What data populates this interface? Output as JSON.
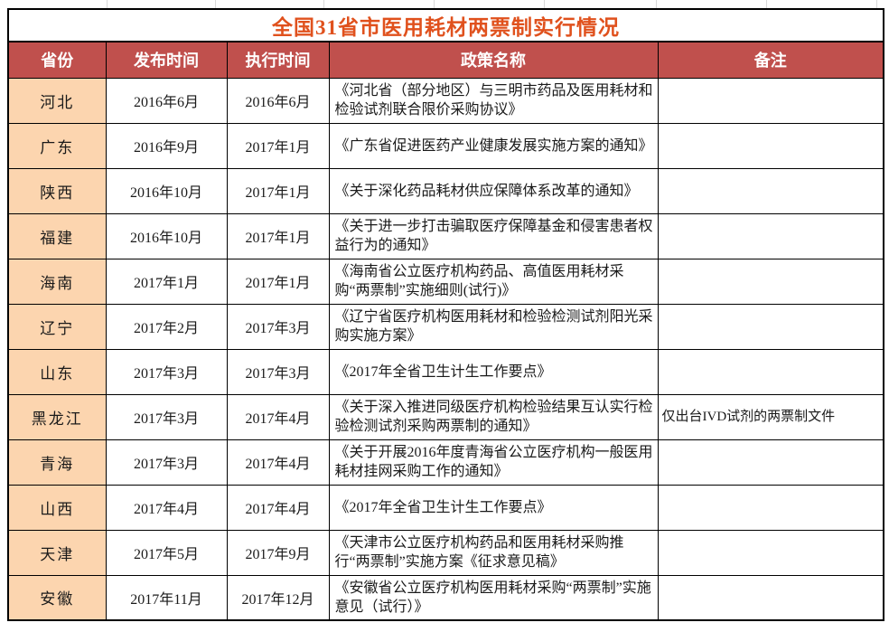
{
  "title": "全国31省市医用耗材两票制实行情况",
  "colors": {
    "header_bg": "#C0504D",
    "province_bg": "#FCD5AF",
    "title_color": "#E0511D",
    "border_color": "#000000",
    "body_text": "#1a1a1a"
  },
  "chart_data": {
    "type": "table",
    "title": "全国31省市医用耗材两票制实行情况",
    "columns": [
      "省份",
      "发布时间",
      "执行时间",
      "政策名称",
      "备注"
    ],
    "rows": [
      [
        "河北",
        "2016年6月",
        "2016年6月",
        "《河北省（部分地区）与三明市药品及医用耗材和检验试剂联合限价采购协议》",
        ""
      ],
      [
        "广东",
        "2016年9月",
        "2017年1月",
        "《广东省促进医药产业健康发展实施方案的通知》",
        ""
      ],
      [
        "陕西",
        "2016年10月",
        "2017年1月",
        "《关于深化药品耗材供应保障体系改革的通知》",
        ""
      ],
      [
        "福建",
        "2016年10月",
        "2017年1月",
        "《关于进一步打击骗取医疗保障基金和侵害患者权益行为的通知》",
        ""
      ],
      [
        "海南",
        "2017年1月",
        "2017年1月",
        "《海南省公立医疗机构药品、高值医用耗材采购“两票制”实施细则(试行)》",
        ""
      ],
      [
        "辽宁",
        "2017年2月",
        "2017年3月",
        "《辽宁省医疗机构医用耗材和检验检测试剂阳光采购实施方案》",
        ""
      ],
      [
        "山东",
        "2017年3月",
        "2017年3月",
        "《2017年全省卫生计生工作要点》",
        ""
      ],
      [
        "黑龙江",
        "2017年3月",
        "2017年4月",
        "《关于深入推进同级医疗机构检验结果互认实行检验检测试剂采购两票制的通知》",
        "仅出台IVD试剂的两票制文件"
      ],
      [
        "青海",
        "2017年3月",
        "2017年4月",
        "《关于开展2016年度青海省公立医疗机构一般医用耗材挂网采购工作的通知》",
        ""
      ],
      [
        "山西",
        "2017年4月",
        "2017年4月",
        "《2017年全省卫生计生工作要点》",
        ""
      ],
      [
        "天津",
        "2017年5月",
        "2017年9月",
        "《天津市公立医疗机构药品和医用耗材采购推行“两票制”实施方案《征求意见稿》",
        ""
      ],
      [
        "安徽",
        "2017年11月",
        "2017年12月",
        "《安徽省公立医疗机构医用耗材采购“两票制”实施意见（试行）》",
        ""
      ]
    ]
  }
}
